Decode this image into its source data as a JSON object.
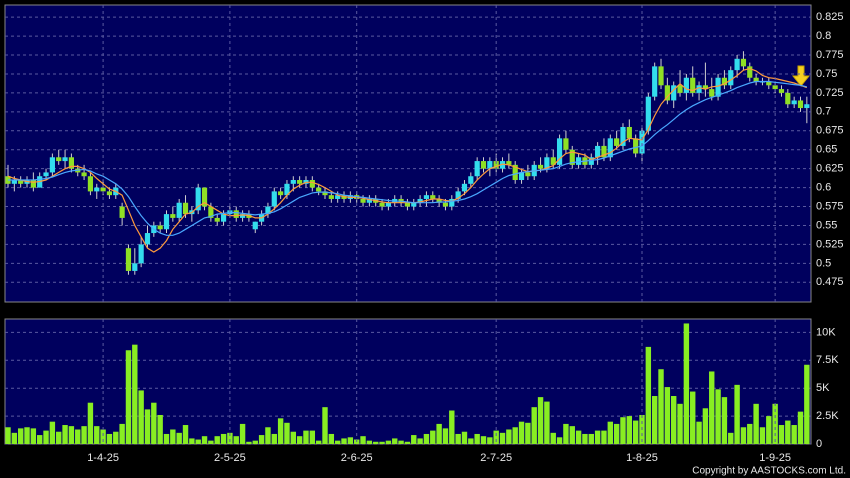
{
  "chart_data": [
    {
      "type": "candlestick",
      "up_color": "#33dded",
      "down_color": "#8fe024",
      "open": [
        0.615,
        0.605,
        0.61,
        0.605,
        0.61,
        0.6,
        0.615,
        0.62,
        0.64,
        0.635,
        0.64,
        0.625,
        0.62,
        0.615,
        0.595,
        0.6,
        0.595,
        0.59,
        0.575,
        0.52,
        0.49,
        0.5,
        0.525,
        0.54,
        0.55,
        0.545,
        0.565,
        0.56,
        0.58,
        0.565,
        0.57,
        0.6,
        0.575,
        0.56,
        0.555,
        0.565,
        0.57,
        0.56,
        0.565,
        0.545,
        0.555,
        0.565,
        0.575,
        0.595,
        0.59,
        0.605,
        0.61,
        0.605,
        0.61,
        0.6,
        0.595,
        0.59,
        0.585,
        0.59,
        0.585,
        0.59,
        0.585,
        0.58,
        0.585,
        0.58,
        0.575,
        0.58,
        0.585,
        0.58,
        0.575,
        0.58,
        0.585,
        0.59,
        0.585,
        0.58,
        0.575,
        0.585,
        0.595,
        0.605,
        0.615,
        0.635,
        0.625,
        0.635,
        0.625,
        0.635,
        0.63,
        0.61,
        0.62,
        0.615,
        0.63,
        0.625,
        0.64,
        0.63,
        0.665,
        0.65,
        0.63,
        0.64,
        0.63,
        0.64,
        0.655,
        0.64,
        0.665,
        0.655,
        0.68,
        0.665,
        0.645,
        0.675,
        0.72,
        0.76,
        0.735,
        0.715,
        0.735,
        0.725,
        0.745,
        0.725,
        0.735,
        0.73,
        0.72,
        0.745,
        0.735,
        0.755,
        0.77,
        0.76,
        0.745,
        0.74,
        0.74,
        0.735,
        0.73,
        0.725,
        0.71,
        0.715,
        0.705
      ],
      "high": [
        0.63,
        0.615,
        0.615,
        0.615,
        0.62,
        0.62,
        0.625,
        0.645,
        0.65,
        0.65,
        0.645,
        0.63,
        0.63,
        0.62,
        0.605,
        0.61,
        0.6,
        0.605,
        0.58,
        0.525,
        0.52,
        0.535,
        0.55,
        0.555,
        0.555,
        0.57,
        0.575,
        0.585,
        0.59,
        0.575,
        0.605,
        0.6,
        0.58,
        0.565,
        0.57,
        0.575,
        0.575,
        0.57,
        0.57,
        0.555,
        0.57,
        0.58,
        0.6,
        0.6,
        0.61,
        0.615,
        0.615,
        0.615,
        0.615,
        0.605,
        0.6,
        0.595,
        0.595,
        0.595,
        0.595,
        0.595,
        0.59,
        0.59,
        0.59,
        0.585,
        0.585,
        0.59,
        0.59,
        0.585,
        0.585,
        0.59,
        0.595,
        0.595,
        0.59,
        0.585,
        0.59,
        0.6,
        0.61,
        0.62,
        0.64,
        0.64,
        0.64,
        0.645,
        0.64,
        0.645,
        0.635,
        0.625,
        0.63,
        0.635,
        0.64,
        0.645,
        0.65,
        0.67,
        0.675,
        0.655,
        0.645,
        0.645,
        0.645,
        0.66,
        0.665,
        0.67,
        0.675,
        0.685,
        0.69,
        0.67,
        0.68,
        0.725,
        0.765,
        0.77,
        0.745,
        0.74,
        0.755,
        0.75,
        0.76,
        0.74,
        0.765,
        0.745,
        0.75,
        0.755,
        0.76,
        0.775,
        0.78,
        0.765,
        0.75,
        0.745,
        0.745,
        0.74,
        0.735,
        0.73,
        0.72,
        0.72,
        0.72
      ],
      "low": [
        0.6,
        0.595,
        0.6,
        0.6,
        0.595,
        0.6,
        0.61,
        0.615,
        0.63,
        0.625,
        0.62,
        0.615,
        0.61,
        0.59,
        0.585,
        0.59,
        0.585,
        0.585,
        0.55,
        0.485,
        0.485,
        0.495,
        0.52,
        0.535,
        0.54,
        0.54,
        0.555,
        0.555,
        0.56,
        0.555,
        0.565,
        0.57,
        0.555,
        0.55,
        0.55,
        0.56,
        0.555,
        0.555,
        0.555,
        0.54,
        0.55,
        0.56,
        0.57,
        0.585,
        0.585,
        0.595,
        0.6,
        0.6,
        0.595,
        0.59,
        0.585,
        0.58,
        0.58,
        0.58,
        0.58,
        0.58,
        0.575,
        0.575,
        0.575,
        0.57,
        0.57,
        0.575,
        0.575,
        0.57,
        0.57,
        0.575,
        0.575,
        0.58,
        0.575,
        0.57,
        0.57,
        0.58,
        0.59,
        0.6,
        0.61,
        0.62,
        0.615,
        0.62,
        0.62,
        0.625,
        0.605,
        0.605,
        0.61,
        0.61,
        0.62,
        0.62,
        0.625,
        0.625,
        0.645,
        0.625,
        0.625,
        0.625,
        0.625,
        0.63,
        0.635,
        0.635,
        0.65,
        0.65,
        0.66,
        0.64,
        0.635,
        0.67,
        0.715,
        0.73,
        0.71,
        0.705,
        0.72,
        0.715,
        0.72,
        0.715,
        0.72,
        0.715,
        0.715,
        0.73,
        0.73,
        0.745,
        0.755,
        0.74,
        0.735,
        0.735,
        0.73,
        0.725,
        0.72,
        0.705,
        0.705,
        0.7,
        0.685
      ],
      "close": [
        0.605,
        0.61,
        0.605,
        0.61,
        0.6,
        0.615,
        0.62,
        0.64,
        0.635,
        0.64,
        0.625,
        0.62,
        0.615,
        0.595,
        0.6,
        0.595,
        0.59,
        0.6,
        0.56,
        0.49,
        0.5,
        0.525,
        0.54,
        0.55,
        0.545,
        0.565,
        0.56,
        0.58,
        0.565,
        0.57,
        0.6,
        0.575,
        0.56,
        0.555,
        0.565,
        0.57,
        0.56,
        0.565,
        0.56,
        0.555,
        0.565,
        0.575,
        0.595,
        0.59,
        0.605,
        0.61,
        0.605,
        0.61,
        0.6,
        0.595,
        0.59,
        0.585,
        0.59,
        0.585,
        0.59,
        0.585,
        0.58,
        0.585,
        0.58,
        0.575,
        0.58,
        0.585,
        0.58,
        0.575,
        0.58,
        0.585,
        0.59,
        0.585,
        0.58,
        0.575,
        0.585,
        0.595,
        0.605,
        0.615,
        0.635,
        0.625,
        0.635,
        0.625,
        0.635,
        0.63,
        0.61,
        0.62,
        0.615,
        0.63,
        0.625,
        0.64,
        0.63,
        0.665,
        0.65,
        0.63,
        0.64,
        0.63,
        0.64,
        0.655,
        0.64,
        0.665,
        0.655,
        0.68,
        0.665,
        0.645,
        0.675,
        0.72,
        0.76,
        0.735,
        0.715,
        0.735,
        0.725,
        0.745,
        0.725,
        0.735,
        0.73,
        0.72,
        0.745,
        0.735,
        0.755,
        0.77,
        0.76,
        0.745,
        0.74,
        0.74,
        0.735,
        0.73,
        0.725,
        0.71,
        0.715,
        0.705,
        0.71
      ],
      "series": [
        {
          "color": "#ff9a3c",
          "values": [
            0.615,
            0.612,
            0.61,
            0.608,
            0.607,
            0.608,
            0.61,
            0.615,
            0.62,
            0.625,
            0.628,
            0.628,
            0.625,
            0.62,
            0.612,
            0.605,
            0.598,
            0.595,
            0.59,
            0.57,
            0.55,
            0.535,
            0.52,
            0.515,
            0.52,
            0.53,
            0.545,
            0.555,
            0.565,
            0.567,
            0.575,
            0.58,
            0.575,
            0.57,
            0.565,
            0.563,
            0.563,
            0.564,
            0.563,
            0.56,
            0.56,
            0.565,
            0.572,
            0.58,
            0.59,
            0.598,
            0.603,
            0.607,
            0.607,
            0.604,
            0.6,
            0.595,
            0.59,
            0.588,
            0.587,
            0.587,
            0.586,
            0.584,
            0.583,
            0.581,
            0.58,
            0.58,
            0.58,
            0.58,
            0.58,
            0.581,
            0.583,
            0.585,
            0.585,
            0.583,
            0.582,
            0.586,
            0.592,
            0.6,
            0.61,
            0.618,
            0.625,
            0.628,
            0.631,
            0.63,
            0.627,
            0.624,
            0.621,
            0.622,
            0.623,
            0.626,
            0.629,
            0.638,
            0.645,
            0.647,
            0.645,
            0.643,
            0.637,
            0.64,
            0.643,
            0.646,
            0.652,
            0.66,
            0.665,
            0.664,
            0.663,
            0.677,
            0.695,
            0.71,
            0.72,
            0.729,
            0.737,
            0.73,
            0.728,
            0.732,
            0.73,
            0.733,
            0.734,
            0.737,
            0.742,
            0.748,
            0.755,
            0.757,
            0.754,
            0.748,
            0.745,
            0.744,
            0.742,
            0.74,
            0.738,
            0.735,
            0.732
          ]
        },
        {
          "color": "#4aa8ff",
          "values": [
            0.61,
            0.61,
            0.61,
            0.61,
            0.61,
            0.611,
            0.612,
            0.614,
            0.617,
            0.62,
            0.622,
            0.623,
            0.624,
            0.622,
            0.618,
            0.615,
            0.61,
            0.605,
            0.598,
            0.588,
            0.575,
            0.563,
            0.553,
            0.545,
            0.54,
            0.537,
            0.537,
            0.54,
            0.545,
            0.55,
            0.555,
            0.56,
            0.562,
            0.565,
            0.566,
            0.567,
            0.567,
            0.566,
            0.565,
            0.564,
            0.565,
            0.566,
            0.568,
            0.572,
            0.577,
            0.582,
            0.587,
            0.59,
            0.593,
            0.594,
            0.594,
            0.593,
            0.592,
            0.59,
            0.589,
            0.588,
            0.587,
            0.586,
            0.585,
            0.584,
            0.583,
            0.582,
            0.582,
            0.581,
            0.58,
            0.58,
            0.58,
            0.58,
            0.581,
            0.581,
            0.582,
            0.583,
            0.585,
            0.588,
            0.592,
            0.597,
            0.602,
            0.607,
            0.612,
            0.616,
            0.618,
            0.62,
            0.621,
            0.622,
            0.623,
            0.624,
            0.625,
            0.628,
            0.631,
            0.633,
            0.634,
            0.635,
            0.636,
            0.637,
            0.639,
            0.642,
            0.645,
            0.648,
            0.651,
            0.653,
            0.655,
            0.662,
            0.67,
            0.677,
            0.683,
            0.69,
            0.697,
            0.703,
            0.708,
            0.712,
            0.716,
            0.719,
            0.722,
            0.725,
            0.728,
            0.732,
            0.735,
            0.738,
            0.74,
            0.74,
            0.74,
            0.739,
            0.738,
            0.737,
            0.736,
            0.735,
            0.733
          ]
        }
      ],
      "ylim": [
        0.449,
        0.841
      ],
      "yticks": [
        0.475,
        0.5,
        0.525,
        0.55,
        0.575,
        0.6,
        0.625,
        0.65,
        0.675,
        0.7,
        0.725,
        0.75,
        0.775,
        0.8,
        0.825
      ],
      "grid": true
    },
    {
      "type": "bar",
      "color": "#88ee22",
      "categories": [
        null,
        null,
        null,
        null,
        null,
        null,
        null,
        null,
        null,
        null,
        null,
        null,
        null,
        null,
        null,
        "1-4-25",
        null,
        null,
        null,
        null,
        null,
        null,
        null,
        null,
        null,
        null,
        null,
        null,
        null,
        null,
        null,
        null,
        null,
        null,
        null,
        "2-5-25",
        null,
        null,
        null,
        null,
        null,
        null,
        null,
        null,
        null,
        null,
        null,
        null,
        null,
        null,
        null,
        null,
        null,
        null,
        null,
        "2-6-25",
        null,
        null,
        null,
        null,
        null,
        null,
        null,
        null,
        null,
        null,
        null,
        null,
        null,
        null,
        null,
        null,
        null,
        null,
        null,
        null,
        null,
        "2-7-25",
        null,
        null,
        null,
        null,
        null,
        null,
        null,
        null,
        null,
        null,
        null,
        null,
        null,
        null,
        null,
        null,
        null,
        null,
        null,
        null,
        null,
        null,
        "1-8-25",
        null,
        null,
        null,
        null,
        null,
        null,
        null,
        null,
        null,
        null,
        null,
        null,
        null,
        null,
        null,
        null,
        null,
        null,
        null,
        null,
        "1-9-25",
        null,
        null,
        null,
        null,
        null
      ],
      "values": [
        1500,
        1000,
        1400,
        1500,
        1400,
        800,
        1200,
        2000,
        1100,
        1700,
        1600,
        1300,
        1600,
        3700,
        1600,
        1300,
        900,
        1100,
        1800,
        8400,
        8900,
        4800,
        3100,
        3700,
        2600,
        900,
        1300,
        1000,
        1700,
        500,
        400,
        700,
        300,
        700,
        900,
        1000,
        700,
        1800,
        200,
        300,
        800,
        1500,
        900,
        2300,
        1900,
        1100,
        700,
        1200,
        1200,
        300,
        3300,
        900,
        300,
        500,
        600,
        400,
        700,
        300,
        200,
        200,
        300,
        500,
        300,
        200,
        800,
        500,
        900,
        1200,
        1800,
        1400,
        3000,
        900,
        1100,
        500,
        900,
        700,
        600,
        1200,
        1000,
        1300,
        1500,
        2000,
        1900,
        3300,
        4200,
        3800,
        1000,
        600,
        1800,
        1600,
        1200,
        900,
        900,
        1200,
        1200,
        2000,
        1800,
        2400,
        2500,
        2100,
        2600,
        8700,
        4300,
        6700,
        5100,
        4300,
        3600,
        10800,
        4700,
        2000,
        3200,
        6500,
        4900,
        4200,
        1000,
        5300,
        1500,
        1800,
        3600,
        1500,
        2500,
        3600,
        1700,
        2100,
        1700,
        2900,
        7100
      ],
      "ylim": [
        0,
        11200
      ],
      "yticks": [
        0,
        {
          "value": 2500,
          "label": "2.5K"
        },
        {
          "value": 5000,
          "label": "5K"
        },
        {
          "value": 7500,
          "label": "7.5K"
        },
        {
          "value": 10000,
          "label": "10K"
        }
      ],
      "grid": true
    }
  ],
  "footer": "Copyright by AASTOCKS.com Ltd."
}
